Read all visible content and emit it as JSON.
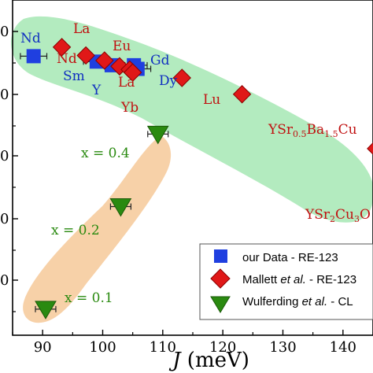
{
  "chart_data": {
    "type": "scatter",
    "xlabel_italic": "J",
    "xlabel_rest": " (meV)",
    "xlim": [
      85,
      145
    ],
    "xticks": [
      90,
      100,
      110,
      120,
      130,
      140
    ],
    "ylim": [
      0.19,
      1.115
    ],
    "y_tick_label": "0",
    "colors": {
      "blue": "#1f3fe0",
      "red": "#e01818",
      "green": "#2a8a10",
      "label_red": "#c01010",
      "label_blue": "#1030c0",
      "band_green": "#a6e8b4",
      "band_orange": "#f6cc9e"
    },
    "series": [
      {
        "name": "our Data - RE-123",
        "marker": "square",
        "color": "#1f3fe0",
        "points": [
          {
            "label": "Nd",
            "x": 88.5,
            "y": 0.96,
            "xerr": 2.2
          },
          {
            "label": "Sm",
            "x": 99.0,
            "y": 0.945,
            "xerr": 2.2
          },
          {
            "label": "Y",
            "x": 101.5,
            "y": 0.935,
            "xerr": 2.2
          },
          {
            "label": "Gd",
            "x": 105.2,
            "y": 0.935,
            "xerr": 2.2
          },
          {
            "label": "Dy",
            "x": 105.8,
            "y": 0.925,
            "xerr": 2.2
          }
        ]
      },
      {
        "name_pre": "Mallett ",
        "name_italic": "et al.",
        "name_post": " - RE-123",
        "marker": "diamond",
        "color": "#e01818",
        "points": [
          {
            "label": "La",
            "x": 93.2,
            "y": 0.985
          },
          {
            "label": "Nd",
            "x": 97.2,
            "y": 0.962
          },
          {
            "label": "Eu",
            "x": 100.3,
            "y": 0.948
          },
          {
            "label": "Sm",
            "x": 102.8,
            "y": 0.932
          },
          {
            "label": "Gd",
            "x": 104.5,
            "y": 0.923
          },
          {
            "label": "Yb",
            "x": 105.0,
            "y": 0.915
          },
          {
            "label": "Lu",
            "x": 113.2,
            "y": 0.9
          },
          {
            "label": "YSr0.5Ba1.5Cu3O",
            "x": 123.2,
            "y": 0.855
          },
          {
            "label": "YSr2Cu3O",
            "x": 145.5,
            "y": 0.705
          }
        ]
      },
      {
        "name_pre": "Wulferding ",
        "name_italic": "et al.",
        "name_post": " - CL",
        "marker": "triangle-down",
        "color": "#2a8a10",
        "points": [
          {
            "label": "x = 0.4",
            "x": 109.2,
            "y": 0.745,
            "xerr": 1.7
          },
          {
            "label": "x = 0.2",
            "x": 103.0,
            "y": 0.545,
            "xerr": 1.7
          },
          {
            "label": "x = 0.1",
            "x": 90.5,
            "y": 0.262,
            "xerr": 1.7
          }
        ]
      }
    ],
    "annotations": {
      "blue": [
        {
          "text": "Nd",
          "sub": ""
        },
        {
          "text": "Sm",
          "sub": ""
        },
        {
          "text": "Y",
          "sub": ""
        },
        {
          "text": "Gd",
          "sub": ""
        },
        {
          "text": "Dy",
          "sub": ""
        }
      ],
      "red": [
        {
          "text": "La"
        },
        {
          "text": "Nd"
        },
        {
          "text": "Eu"
        },
        {
          "text": "La"
        },
        {
          "text": "Yb"
        },
        {
          "text": "Lu"
        }
      ],
      "ysrba": {
        "p1": "YSr",
        "s1": "0.5",
        "p2": "Ba",
        "s2": "1.5",
        "p3": "Cu"
      },
      "ysr2": {
        "p1": "YSr",
        "s1": "2",
        "p2": "Cu",
        "s2": "3",
        "p3": "O"
      },
      "green": [
        "x = 0.4",
        "x = 0.2",
        "x = 0.1"
      ]
    }
  }
}
